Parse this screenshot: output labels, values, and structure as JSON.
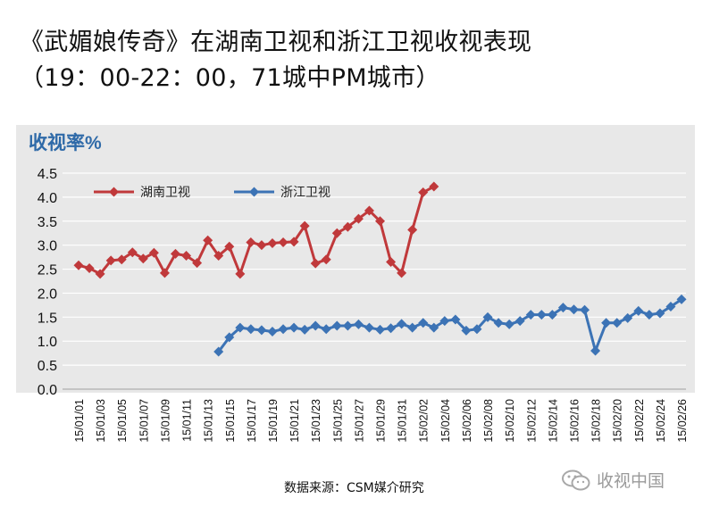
{
  "title": {
    "line1": "《武媚娘传奇》在湖南卫视和浙江卫视收视表现",
    "line2": "（19：00-22：00，71城中PM城市）"
  },
  "source": "数据来源：CSM媒介研究",
  "watermark": "收视中国",
  "colors": {
    "hunan": "#c0393b",
    "zhejiang": "#3c73b5",
    "panel_bg": "#e8e8e8",
    "grid": "#ffffff",
    "panel_label": "#2f6aa8"
  },
  "chart_data": {
    "type": "line",
    "ylabel": "收视率%",
    "ylim": [
      0,
      4.5
    ],
    "yticks": [
      "0.0",
      "0.5",
      "1.0",
      "1.5",
      "2.0",
      "2.5",
      "3.0",
      "3.5",
      "4.0",
      "4.5"
    ],
    "grid": "horizontal",
    "legend": "top-left",
    "x": [
      "15/01/01",
      "15/01/02",
      "15/01/03",
      "15/01/04",
      "15/01/05",
      "15/01/06",
      "15/01/07",
      "15/01/08",
      "15/01/09",
      "15/01/10",
      "15/01/11",
      "15/01/12",
      "15/01/13",
      "15/01/14",
      "15/01/15",
      "15/01/16",
      "15/01/17",
      "15/01/18",
      "15/01/19",
      "15/01/20",
      "15/01/21",
      "15/01/22",
      "15/01/23",
      "15/01/24",
      "15/01/25",
      "15/01/26",
      "15/01/27",
      "15/01/28",
      "15/01/29",
      "15/01/30",
      "15/01/31",
      "15/02/01",
      "15/02/02",
      "15/02/03",
      "15/02/04",
      "15/02/05",
      "15/02/06",
      "15/02/07",
      "15/02/08",
      "15/02/09",
      "15/02/10",
      "15/02/11",
      "15/02/12",
      "15/02/13",
      "15/02/14",
      "15/02/15",
      "15/02/16",
      "15/02/17",
      "15/02/18",
      "15/02/19",
      "15/02/20",
      "15/02/21",
      "15/02/22",
      "15/02/23",
      "15/02/24",
      "15/02/25",
      "15/02/26"
    ],
    "xticklabels": [
      "15/01/01",
      "15/01/03",
      "15/01/05",
      "15/01/07",
      "15/01/09",
      "15/01/11",
      "15/01/13",
      "15/01/15",
      "15/01/17",
      "15/01/19",
      "15/01/21",
      "15/01/23",
      "15/01/25",
      "15/01/27",
      "15/01/29",
      "15/01/31",
      "15/02/02",
      "15/02/04",
      "15/02/06",
      "15/02/08",
      "15/02/10",
      "15/02/12",
      "15/02/14",
      "15/02/16",
      "15/02/18",
      "15/02/20",
      "15/02/22",
      "15/02/24",
      "15/02/26"
    ],
    "series": [
      {
        "name": "湖南卫视",
        "color": "#c0393b",
        "marker": "diamond",
        "values": [
          2.58,
          2.52,
          2.4,
          2.68,
          2.7,
          2.85,
          2.72,
          2.84,
          2.42,
          2.82,
          2.78,
          2.63,
          3.1,
          2.78,
          2.97,
          2.4,
          3.06,
          3.0,
          3.04,
          3.06,
          3.07,
          3.4,
          2.62,
          2.7,
          3.25,
          3.38,
          3.55,
          3.72,
          3.5,
          2.65,
          2.42,
          3.32,
          4.1,
          4.22,
          null,
          null,
          null,
          null,
          null,
          null,
          null,
          null,
          null,
          null,
          null,
          null,
          null,
          null,
          null,
          null,
          null,
          null,
          null,
          null,
          null,
          null,
          null
        ]
      },
      {
        "name": "浙江卫视",
        "color": "#3c73b5",
        "marker": "diamond",
        "values": [
          null,
          null,
          null,
          null,
          null,
          null,
          null,
          null,
          null,
          null,
          null,
          null,
          null,
          0.78,
          1.08,
          1.28,
          1.25,
          1.23,
          1.2,
          1.25,
          1.28,
          1.24,
          1.32,
          1.25,
          1.32,
          1.32,
          1.35,
          1.28,
          1.24,
          1.27,
          1.36,
          1.28,
          1.38,
          1.28,
          1.42,
          1.45,
          1.22,
          1.25,
          1.5,
          1.38,
          1.35,
          1.42,
          1.55,
          1.55,
          1.55,
          1.7,
          1.66,
          1.65,
          0.8,
          1.38,
          1.38,
          1.48,
          1.63,
          1.55,
          1.58,
          1.72,
          1.87
        ]
      }
    ]
  }
}
